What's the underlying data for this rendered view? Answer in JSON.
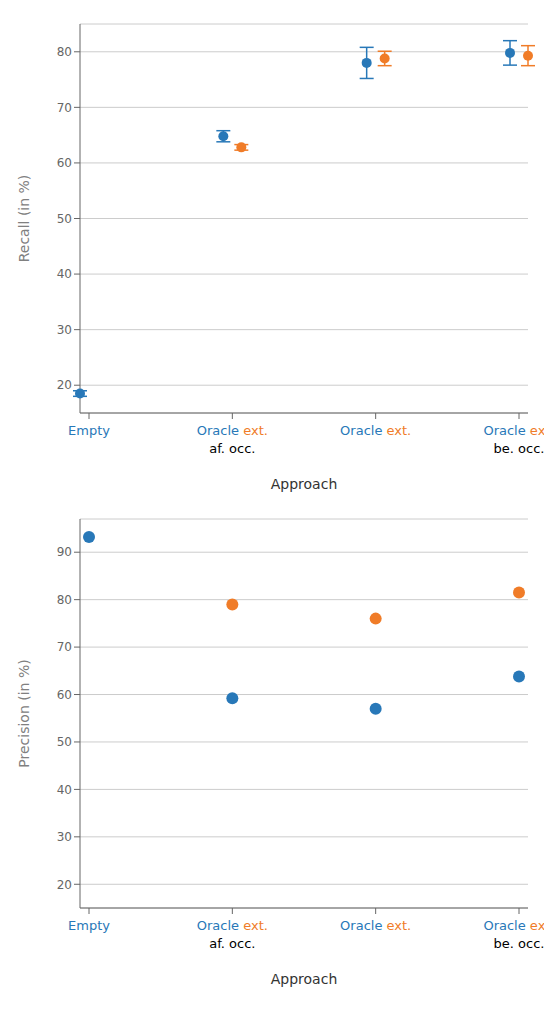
{
  "chart_data": [
    {
      "type": "scatter",
      "ylabel": "Recall (in %)",
      "xlabel": "Approach",
      "categories": [
        "Empty",
        "Oracle ext.\naf. occ.",
        "Oracle ext.",
        "Oracle ext.\nbe. occ."
      ],
      "series": [
        {
          "color": "#2878b8",
          "values": [
            18.5,
            64.8,
            78.0,
            79.8
          ],
          "errors": [
            0.5,
            1.0,
            2.8,
            2.2
          ]
        },
        {
          "color": "#f07c28",
          "values": [
            null,
            62.8,
            78.8,
            79.3
          ],
          "errors": [
            null,
            0.5,
            1.3,
            1.8
          ]
        }
      ],
      "ylim": [
        15,
        85
      ],
      "yticks": [
        20,
        30,
        40,
        50,
        60,
        70,
        80
      ],
      "grid": true
    },
    {
      "type": "scatter",
      "ylabel": "Precision (in %)",
      "xlabel": "Approach",
      "categories": [
        "Empty",
        "Oracle ext.\naf. occ.",
        "Oracle ext.",
        "Oracle ext.\nbe. occ."
      ],
      "series": [
        {
          "color": "#2878b8",
          "values": [
            93.2,
            59.2,
            57.0,
            63.8
          ]
        },
        {
          "color": "#f07c28",
          "values": [
            null,
            79.0,
            76.0,
            81.5
          ]
        }
      ],
      "ylim": [
        15,
        97
      ],
      "yticks": [
        20,
        30,
        40,
        50,
        60,
        70,
        80,
        90
      ],
      "grid": true
    }
  ]
}
